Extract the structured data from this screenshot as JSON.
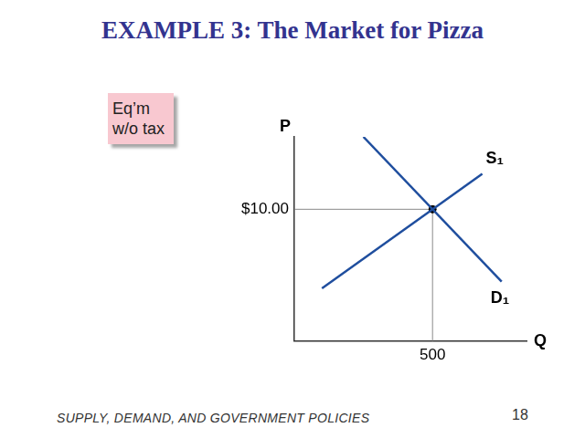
{
  "chart_data": {
    "type": "line",
    "title": "EXAMPLE 3:  The Market for Pizza",
    "x_label": "Q",
    "y_label": "P",
    "xlim": [
      0,
      840
    ],
    "ylim": [
      0,
      15.5
    ],
    "xticks": [
      500
    ],
    "yticks": [
      {
        "value": 10,
        "label": "$10.00"
      }
    ],
    "grid": false,
    "series": [
      {
        "name": "S₁",
        "color": "#1f4e9e",
        "x": [
          100,
          680
        ],
        "values": [
          4,
          12.7
        ]
      },
      {
        "name": "D₁",
        "color": "#1f4e9e",
        "x": [
          250,
          750
        ],
        "values": [
          15.5,
          4.5
        ]
      }
    ],
    "equilibrium": {
      "x": 500,
      "y": 10
    },
    "annotations": [
      "Eq’m w/o tax"
    ]
  },
  "footer": "SUPPLY, DEMAND, AND GOVERNMENT POLICIES",
  "page_number": "18"
}
